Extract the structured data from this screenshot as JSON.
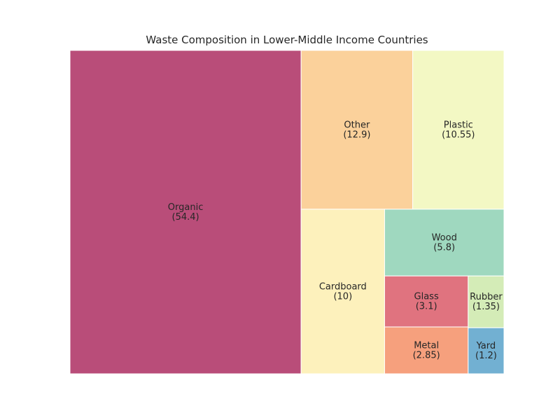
{
  "chart_data": {
    "type": "treemap",
    "title": "Waste Composition in Lower-Middle Income Countries",
    "items": [
      {
        "label": "Organic",
        "value": 54.4,
        "color": "#b94d79"
      },
      {
        "label": "Other",
        "value": 12.9,
        "color": "#fbd19b"
      },
      {
        "label": "Plastic",
        "value": 10.55,
        "color": "#f3f8c4"
      },
      {
        "label": "Cardboard",
        "value": 10.0,
        "color": "#fdf1bc"
      },
      {
        "label": "Wood",
        "value": 5.8,
        "color": "#9fd8bf"
      },
      {
        "label": "Glass",
        "value": 3.1,
        "color": "#e0737f"
      },
      {
        "label": "Metal",
        "value": 2.85,
        "color": "#f6a07d"
      },
      {
        "label": "Rubber",
        "value": 1.35,
        "color": "#d4ecb7"
      },
      {
        "label": "Yard",
        "value": 1.2,
        "color": "#72b0d2"
      }
    ]
  }
}
